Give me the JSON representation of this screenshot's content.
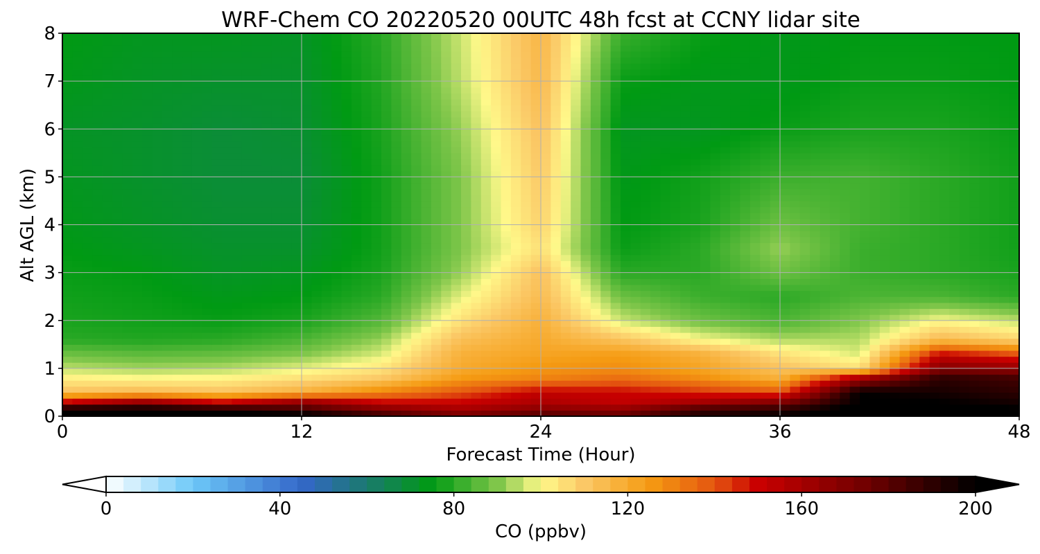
{
  "chart_data": {
    "type": "heatmap",
    "title": "WRF-Chem CO  20220520 00UTC 48h fcst at CCNY lidar site",
    "xlabel": "Forecast Time (Hour)",
    "ylabel": "Alt AGL (km)",
    "xlim": [
      0,
      48
    ],
    "ylim": [
      0,
      8
    ],
    "x_ticks": [
      0,
      12,
      24,
      36,
      48
    ],
    "y_ticks": [
      0,
      1,
      2,
      3,
      4,
      5,
      6,
      7,
      8
    ],
    "grid": true,
    "grid_x_hours": [
      0,
      4,
      8,
      12,
      16,
      20,
      24,
      28,
      32,
      36,
      40,
      44,
      48
    ],
    "grid_z_km": [
      0,
      0.15,
      0.3,
      0.5,
      0.8,
      1.0,
      1.3,
      1.6,
      2.0,
      2.5,
      3.0,
      3.5,
      4.0,
      5.0,
      6.0,
      7.0,
      8.0
    ],
    "values_ppbv": [
      [
        205,
        205,
        205,
        205,
        190,
        175,
        185,
        180,
        195,
        200,
        205,
        210,
        200
      ],
      [
        200,
        200,
        195,
        185,
        170,
        160,
        168,
        165,
        185,
        190,
        205,
        210,
        200
      ],
      [
        150,
        165,
        150,
        165,
        150,
        150,
        158,
        152,
        160,
        170,
        200,
        200,
        195
      ],
      [
        112,
        115,
        112,
        118,
        130,
        140,
        152,
        150,
        145,
        140,
        200,
        195,
        190
      ],
      [
        102,
        100,
        101,
        105,
        110,
        125,
        130,
        135,
        128,
        118,
        160,
        190,
        185
      ],
      [
        95,
        93,
        94,
        98,
        104,
        120,
        126,
        128,
        122,
        112,
        105,
        170,
        165
      ],
      [
        88,
        86,
        87,
        90,
        97,
        118,
        122,
        124,
        118,
        105,
        97,
        150,
        140
      ],
      [
        80,
        79,
        80,
        84,
        92,
        113,
        120,
        112,
        100,
        94,
        94,
        115,
        108
      ],
      [
        78,
        77,
        76,
        78,
        85,
        105,
        118,
        96,
        88,
        84,
        90,
        100,
        95
      ],
      [
        77,
        76,
        74,
        75,
        80,
        98,
        114,
        88,
        82,
        80,
        84,
        84,
        80
      ],
      [
        76,
        75,
        72,
        73,
        78,
        92,
        112,
        80,
        80,
        88,
        82,
        80,
        78
      ],
      [
        75,
        73,
        71,
        71,
        77,
        90,
        105,
        76,
        80,
        92,
        82,
        80,
        77
      ],
      [
        74,
        72,
        70,
        70,
        77,
        90,
        108,
        75,
        78,
        88,
        83,
        80,
        77
      ],
      [
        73,
        71,
        69,
        69,
        77,
        90,
        110,
        74,
        77,
        82,
        83,
        80,
        77
      ],
      [
        72,
        71,
        69,
        70,
        78,
        92,
        112,
        73,
        73,
        76,
        78,
        78,
        76
      ],
      [
        74,
        72,
        71,
        71,
        79,
        95,
        115,
        76,
        74,
        74,
        76,
        76,
        75
      ],
      [
        75,
        73,
        73,
        72,
        80,
        96,
        116,
        82,
        76,
        74,
        75,
        75,
        75
      ]
    ],
    "colorbar": {
      "label": "CO  (ppbv)",
      "vmin": 0,
      "vmax": 200,
      "ticks": [
        0,
        40,
        80,
        120,
        160,
        200
      ],
      "extend": "both",
      "color_stops": [
        {
          "value": 0,
          "color": "#ffffff"
        },
        {
          "value": 20,
          "color": "#6cc8f8"
        },
        {
          "value": 45,
          "color": "#3467c9"
        },
        {
          "value": 60,
          "color": "#1b7a6e"
        },
        {
          "value": 75,
          "color": "#009a13"
        },
        {
          "value": 90,
          "color": "#7fc64a"
        },
        {
          "value": 100,
          "color": "#fff98a"
        },
        {
          "value": 110,
          "color": "#fbc866"
        },
        {
          "value": 125,
          "color": "#f59b12"
        },
        {
          "value": 140,
          "color": "#e45510"
        },
        {
          "value": 150,
          "color": "#c90000"
        },
        {
          "value": 175,
          "color": "#6f0000"
        },
        {
          "value": 200,
          "color": "#000000"
        }
      ]
    }
  }
}
